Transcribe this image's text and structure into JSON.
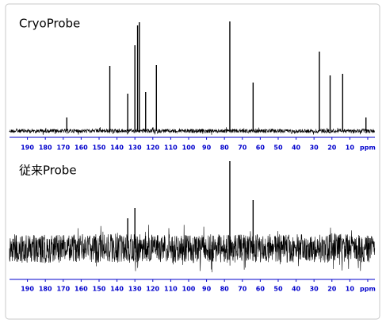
{
  "chart_data": [
    {
      "type": "spectrum",
      "title": "CryoProbe",
      "x": [
        168,
        144,
        134,
        130,
        128.5,
        127.5,
        124,
        118,
        77,
        64,
        27,
        21,
        14,
        1
      ],
      "values": [
        17,
        82,
        47,
        108,
        133,
        137,
        49,
        83,
        138,
        61,
        100,
        70,
        72,
        17
      ],
      "color": "#000000",
      "axis_color": "#0000cc",
      "xlim": [
        200,
        -4
      ],
      "ylim": [
        0,
        140
      ],
      "xticks": [
        190,
        180,
        170,
        160,
        150,
        140,
        130,
        120,
        110,
        100,
        90,
        80,
        70,
        60,
        50,
        40,
        30,
        20,
        10,
        {
          "value": 0,
          "label": "ppm"
        }
      ]
    },
    {
      "type": "spectrum",
      "title": "従来Probe",
      "x": [
        134,
        130,
        77,
        64
      ],
      "values": [
        38,
        51,
        110,
        61
      ],
      "color": "#000000",
      "axis_color": "#0000cc",
      "xlim": [
        200,
        -4
      ],
      "ylim": [
        0,
        140
      ],
      "xticks": [
        190,
        180,
        170,
        160,
        150,
        140,
        130,
        120,
        110,
        100,
        90,
        80,
        70,
        60,
        50,
        40,
        30,
        20,
        10,
        {
          "value": 0,
          "label": "ppm"
        }
      ]
    }
  ]
}
